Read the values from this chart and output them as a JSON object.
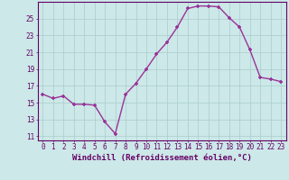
{
  "x": [
    0,
    1,
    2,
    3,
    4,
    5,
    6,
    7,
    8,
    9,
    10,
    11,
    12,
    13,
    14,
    15,
    16,
    17,
    18,
    19,
    20,
    21,
    22,
    23
  ],
  "y": [
    16.0,
    15.5,
    15.8,
    14.8,
    14.8,
    14.7,
    12.7,
    11.3,
    16.0,
    17.3,
    19.0,
    20.8,
    22.2,
    24.0,
    26.2,
    26.5,
    26.5,
    26.4,
    25.1,
    24.0,
    21.3,
    18.0,
    17.8,
    17.5
  ],
  "line_color": "#993399",
  "marker": "+",
  "xlabel": "Windchill (Refroidissement éolien,°C)",
  "xlabel_fontsize": 6.5,
  "yticks": [
    11,
    13,
    15,
    17,
    19,
    21,
    23,
    25
  ],
  "xticks": [
    0,
    1,
    2,
    3,
    4,
    5,
    6,
    7,
    8,
    9,
    10,
    11,
    12,
    13,
    14,
    15,
    16,
    17,
    18,
    19,
    20,
    21,
    22,
    23
  ],
  "xlim": [
    -0.5,
    23.5
  ],
  "ylim": [
    10.5,
    27.0
  ],
  "background_color": "#cce8e8",
  "grid_color": "#aacccc",
  "tick_fontsize": 5.5,
  "line_width": 1.0,
  "marker_size": 3.5
}
